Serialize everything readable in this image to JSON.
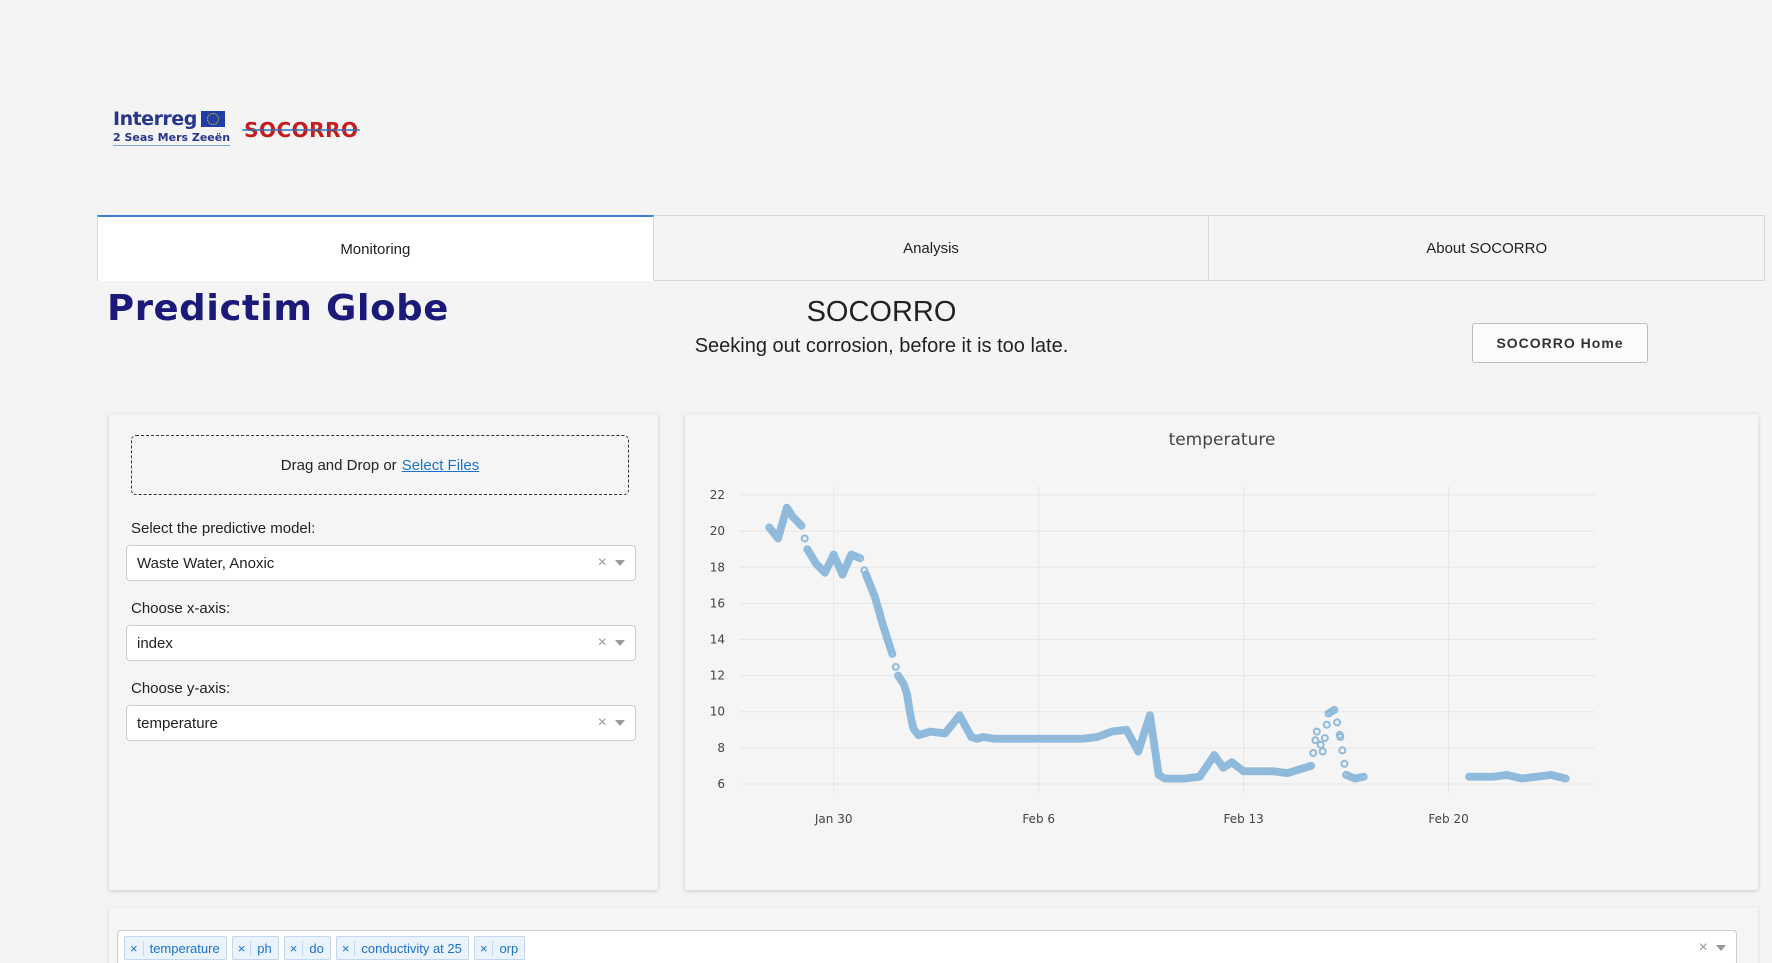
{
  "logos": {
    "interreg_name": "Interreg",
    "interreg_sub": "2 Seas Mers Zeeën",
    "socorro": "SOCORRO"
  },
  "tabs": [
    {
      "label": "Monitoring",
      "active": true
    },
    {
      "label": "Analysis",
      "active": false
    },
    {
      "label": "About SOCORRO",
      "active": false
    }
  ],
  "brand": "Predictim Globe",
  "headline": {
    "title": "SOCORRO",
    "subtitle": "Seeking out corrosion, before it is too late."
  },
  "home_button": "SOCORRO Home",
  "upload": {
    "text": "Drag and Drop or",
    "link": "Select Files"
  },
  "controls": {
    "model_label": "Select the predictive model:",
    "model_value": "Waste Water, Anoxic",
    "x_label": "Choose x-axis:",
    "x_value": "index",
    "y_label": "Choose y-axis:",
    "y_value": "temperature",
    "clear_glyph": "×"
  },
  "variables": [
    "temperature",
    "ph",
    "do",
    "conductivity at 25",
    "orp"
  ],
  "chart_data": {
    "type": "scatter",
    "title": "temperature",
    "xlabel": "",
    "ylabel": "",
    "ylim": [
      5.5,
      22.5
    ],
    "y_ticks": [
      6,
      8,
      10,
      12,
      14,
      16,
      18,
      20,
      22
    ],
    "x_ticks": [
      "Jan 30",
      "Feb 6",
      "Feb 13",
      "Feb 20"
    ],
    "x_tick_days": [
      0,
      7,
      14,
      21
    ],
    "xlim": [
      -3.2,
      26
    ],
    "grid": true,
    "marker_color": "#8fbadb",
    "series": [
      {
        "x": [
          -2.2,
          -1.9,
          -1.6,
          -1.4,
          -1.1,
          -0.9,
          -0.6,
          -0.3,
          0.0,
          0.3,
          0.6,
          0.9,
          1.1,
          1.4,
          1.7,
          2.0,
          2.2,
          2.4,
          2.5,
          2.55,
          2.6,
          2.65,
          2.7,
          2.75,
          2.8,
          2.9,
          3.3,
          3.8,
          4.3,
          4.7,
          4.9,
          5.1,
          5.5,
          6.5,
          7.5,
          8.5,
          9.0,
          9.5,
          10.0,
          10.4,
          10.8,
          11.1,
          11.3,
          11.6,
          12.0,
          12.5,
          13.0,
          13.3,
          13.6,
          14.0,
          14.5,
          15.0,
          15.5,
          15.9,
          16.3,
          16.5,
          16.7,
          16.9,
          17.1,
          17.3,
          17.5,
          17.8,
          18.1,
          21.7,
          22.5,
          23.0,
          23.5,
          24.0,
          24.5,
          25.0
        ],
        "y": [
          20.2,
          19.6,
          21.3,
          20.8,
          20.3,
          19.0,
          18.2,
          17.7,
          18.7,
          17.6,
          18.7,
          18.5,
          17.6,
          16.4,
          14.7,
          13.2,
          12.0,
          11.5,
          11.0,
          10.5,
          10.0,
          9.6,
          9.2,
          9.0,
          8.9,
          8.7,
          8.9,
          8.8,
          9.8,
          8.6,
          8.5,
          8.6,
          8.5,
          8.5,
          8.5,
          8.5,
          8.6,
          8.9,
          9.0,
          7.8,
          9.8,
          6.5,
          6.3,
          6.3,
          6.3,
          6.4,
          7.6,
          6.9,
          7.2,
          6.7,
          6.7,
          6.7,
          6.6,
          6.8,
          7.0,
          8.9,
          7.8,
          9.9,
          10.1,
          8.6,
          6.5,
          6.3,
          6.4,
          6.4,
          6.4,
          6.5,
          6.3,
          6.4,
          6.5,
          6.3
        ]
      }
    ]
  }
}
